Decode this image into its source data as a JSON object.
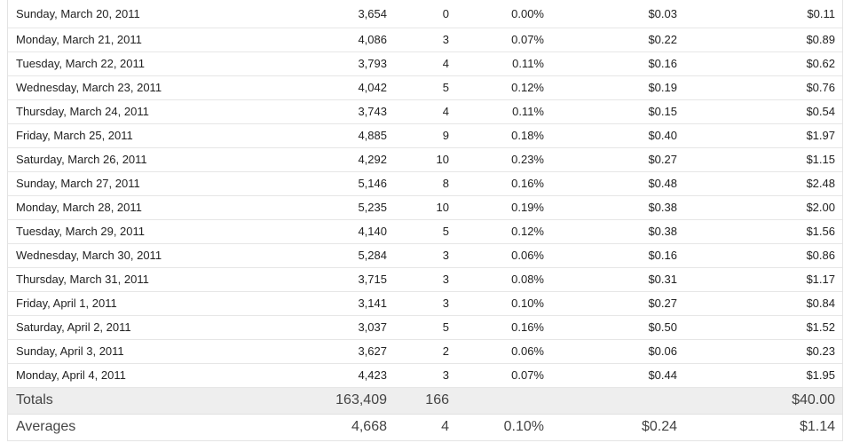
{
  "rows": [
    {
      "date": "Sunday, March 20, 2011",
      "views": "3,654",
      "clicks": "0",
      "ctr": "0.00%",
      "cpc": "$0.03",
      "earnings": "$0.11"
    },
    {
      "date": "Monday, March 21, 2011",
      "views": "4,086",
      "clicks": "3",
      "ctr": "0.07%",
      "cpc": "$0.22",
      "earnings": "$0.89"
    },
    {
      "date": "Tuesday, March 22, 2011",
      "views": "3,793",
      "clicks": "4",
      "ctr": "0.11%",
      "cpc": "$0.16",
      "earnings": "$0.62"
    },
    {
      "date": "Wednesday, March 23, 2011",
      "views": "4,042",
      "clicks": "5",
      "ctr": "0.12%",
      "cpc": "$0.19",
      "earnings": "$0.76"
    },
    {
      "date": "Thursday, March 24, 2011",
      "views": "3,743",
      "clicks": "4",
      "ctr": "0.11%",
      "cpc": "$0.15",
      "earnings": "$0.54"
    },
    {
      "date": "Friday, March 25, 2011",
      "views": "4,885",
      "clicks": "9",
      "ctr": "0.18%",
      "cpc": "$0.40",
      "earnings": "$1.97"
    },
    {
      "date": "Saturday, March 26, 2011",
      "views": "4,292",
      "clicks": "10",
      "ctr": "0.23%",
      "cpc": "$0.27",
      "earnings": "$1.15"
    },
    {
      "date": "Sunday, March 27, 2011",
      "views": "5,146",
      "clicks": "8",
      "ctr": "0.16%",
      "cpc": "$0.48",
      "earnings": "$2.48"
    },
    {
      "date": "Monday, March 28, 2011",
      "views": "5,235",
      "clicks": "10",
      "ctr": "0.19%",
      "cpc": "$0.38",
      "earnings": "$2.00"
    },
    {
      "date": "Tuesday, March 29, 2011",
      "views": "4,140",
      "clicks": "5",
      "ctr": "0.12%",
      "cpc": "$0.38",
      "earnings": "$1.56"
    },
    {
      "date": "Wednesday, March 30, 2011",
      "views": "5,284",
      "clicks": "3",
      "ctr": "0.06%",
      "cpc": "$0.16",
      "earnings": "$0.86"
    },
    {
      "date": "Thursday, March 31, 2011",
      "views": "3,715",
      "clicks": "3",
      "ctr": "0.08%",
      "cpc": "$0.31",
      "earnings": "$1.17"
    },
    {
      "date": "Friday, April 1, 2011",
      "views": "3,141",
      "clicks": "3",
      "ctr": "0.10%",
      "cpc": "$0.27",
      "earnings": "$0.84"
    },
    {
      "date": "Saturday, April 2, 2011",
      "views": "3,037",
      "clicks": "5",
      "ctr": "0.16%",
      "cpc": "$0.50",
      "earnings": "$1.52"
    },
    {
      "date": "Sunday, April 3, 2011",
      "views": "3,627",
      "clicks": "2",
      "ctr": "0.06%",
      "cpc": "$0.06",
      "earnings": "$0.23"
    },
    {
      "date": "Monday, April 4, 2011",
      "views": "4,423",
      "clicks": "3",
      "ctr": "0.07%",
      "cpc": "$0.44",
      "earnings": "$1.95"
    }
  ],
  "totals": {
    "label": "Totals",
    "views": "163,409",
    "clicks": "166",
    "ctr": "",
    "cpc": "",
    "earnings": "$40.00"
  },
  "averages": {
    "label": "Averages",
    "views": "4,668",
    "clicks": "4",
    "ctr": "0.10%",
    "cpc": "$0.24",
    "earnings": "$1.14"
  }
}
